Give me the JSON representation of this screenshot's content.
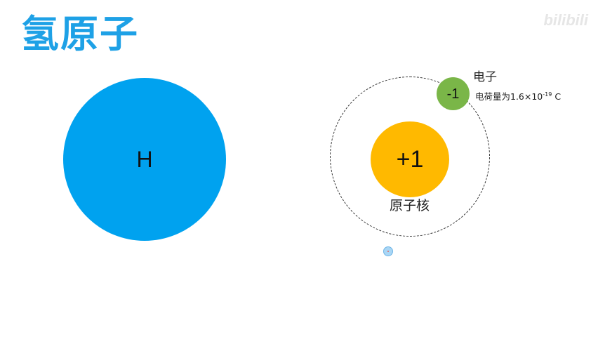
{
  "slide": {
    "title": "氢原子",
    "watermark": "bilibili"
  },
  "atom": {
    "symbol": "H",
    "color": "#00a2ef"
  },
  "nucleus": {
    "charge": "+1",
    "label": "原子核",
    "color": "#ffb900"
  },
  "electron": {
    "charge": "-1",
    "label": "电子",
    "charge_prefix": "电荷量为1.6×10",
    "charge_exponent": "-19",
    "charge_unit": " C",
    "color": "#7ab648"
  },
  "colors": {
    "title": "#1ea1e6",
    "orbit": "#333333"
  }
}
